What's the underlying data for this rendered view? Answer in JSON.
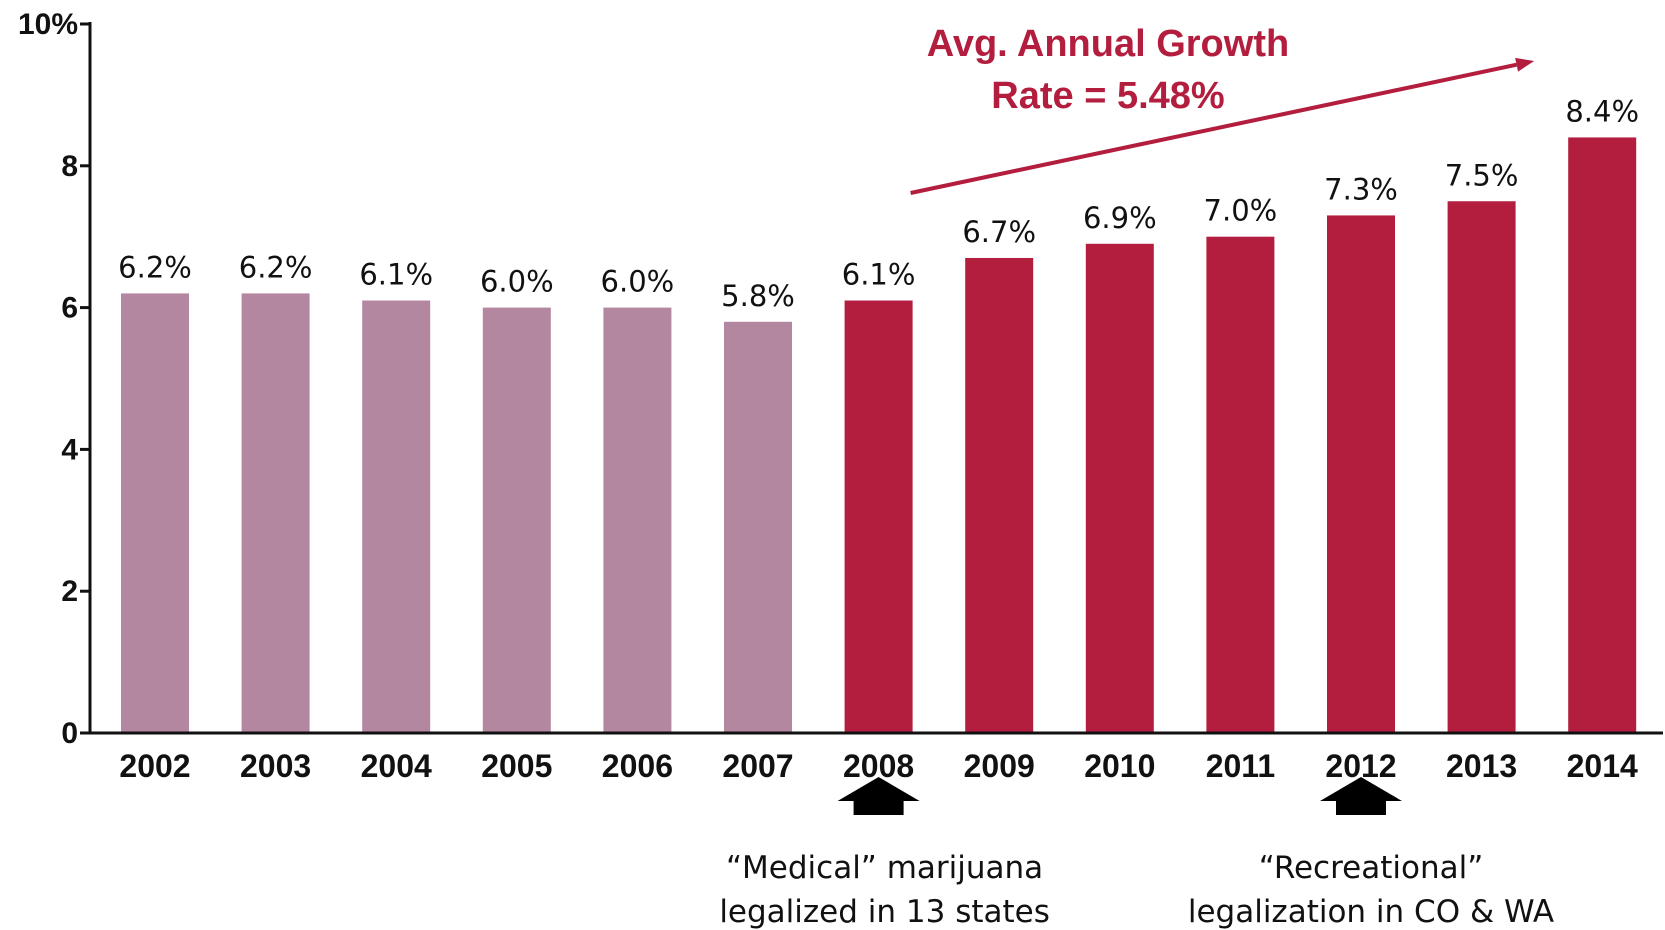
{
  "chart_data": {
    "type": "bar",
    "categories": [
      "2002",
      "2003",
      "2004",
      "2005",
      "2006",
      "2007",
      "2008",
      "2009",
      "2010",
      "2011",
      "2012",
      "2013",
      "2014"
    ],
    "values": [
      6.2,
      6.2,
      6.1,
      6.0,
      6.0,
      5.8,
      6.1,
      6.7,
      6.9,
      7.0,
      7.3,
      7.5,
      8.4
    ],
    "data_labels": [
      "6.2%",
      "6.2%",
      "6.1%",
      "6.0%",
      "6.0%",
      "5.8%",
      "6.1%",
      "6.7%",
      "6.9%",
      "7.0%",
      "7.3%",
      "7.5%",
      "8.4%"
    ],
    "ylim": [
      0,
      10
    ],
    "yticks": [
      0,
      2,
      4,
      6,
      8,
      10
    ],
    "ytick_labels": [
      "0",
      "2",
      "4",
      "6",
      "8",
      "10%"
    ],
    "grid": false,
    "colors": {
      "before_2008": "#b3879f",
      "from_2008": "#b31e3e",
      "annotation": "#b31e3e",
      "text": "#111111"
    },
    "highlight_from_category": "2008",
    "annotations": {
      "growth_line1": "Avg. Annual Growth",
      "growth_line2": "Rate = 5.48%",
      "growth_arrow_from": "2008",
      "growth_arrow_to": "2014",
      "markers": [
        {
          "category": "2008",
          "line1": "“Medical” marijuana",
          "line2": "legalized in 13 states",
          "icon": "up-arrow-icon"
        },
        {
          "category": "2012",
          "line1": "“Recreational”",
          "line2": "legalization in CO & WA",
          "icon": "up-arrow-icon"
        }
      ]
    }
  }
}
